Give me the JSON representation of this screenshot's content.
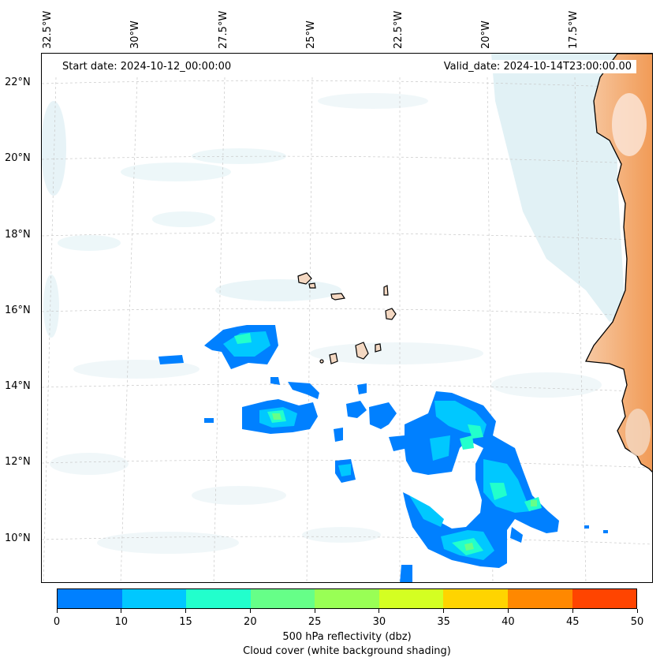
{
  "map": {
    "start_label": "Start date: 2024-10-12_00:00:00",
    "valid_label": "Valid_date: 2024-10-14T23:00:00.00",
    "lon_ticks": [
      "32.5°W",
      "30°W",
      "27.5°W",
      "25°W",
      "22.5°W",
      "20°W",
      "17.5°W"
    ],
    "lat_ticks": [
      "22°N",
      "20°N",
      "18°N",
      "16°N",
      "14°N",
      "12°N",
      "10°N"
    ],
    "colors": {
      "land": "#f4d8c2",
      "desert": "#f2a86a",
      "cloud": "#d7ecf2",
      "coast": "#000000",
      "refl_0_10": "#0080ff",
      "refl_10_15": "#00c8ff",
      "refl_15_20": "#22ffcc",
      "refl_20_25": "#66ff88"
    }
  },
  "colorbar": {
    "title": "500 hPa reflectivity (dbz)",
    "subtitle": "Cloud cover (white background shading)",
    "tick_labels": [
      "0",
      "10",
      "15",
      "20",
      "25",
      "30",
      "35",
      "40",
      "45",
      "50"
    ],
    "colors": [
      "#0080ff",
      "#00c8ff",
      "#22ffcc",
      "#66ff88",
      "#99ff55",
      "#d4ff22",
      "#ffd400",
      "#ff8800",
      "#ff4400"
    ]
  }
}
